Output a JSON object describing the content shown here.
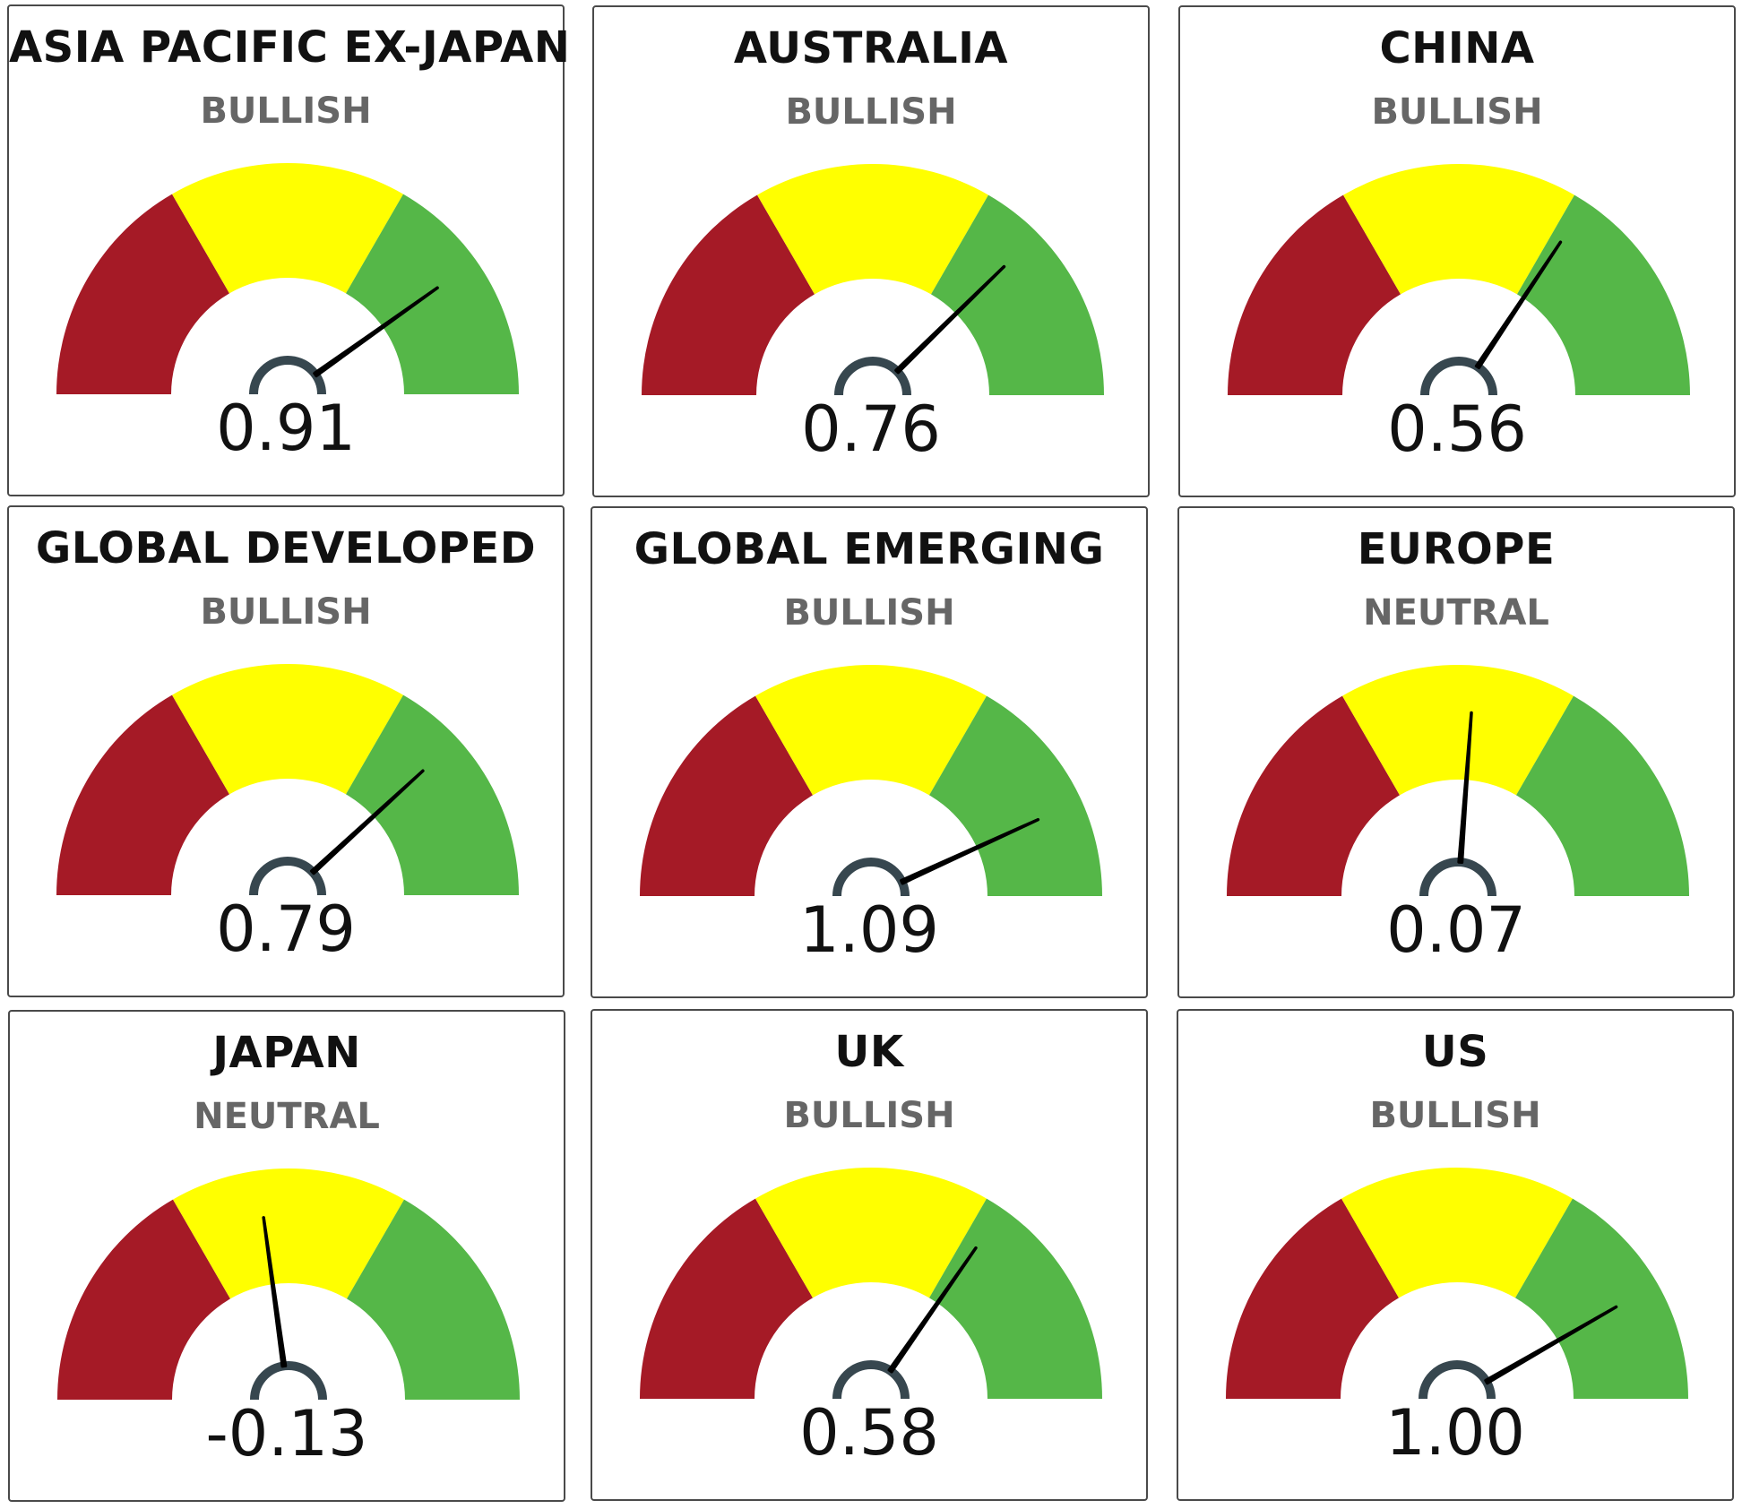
{
  "chart_data": [
    {
      "type": "gauge",
      "title": "ASIA PACIFIC EX-JAPAN",
      "status": "BULLISH",
      "value": 0.91,
      "value_label": "0.91",
      "range": [
        -1.5,
        1.5
      ],
      "bands": [
        {
          "from": -1.5,
          "to": -0.5,
          "color": "#a51a26"
        },
        {
          "from": -0.5,
          "to": 0.5,
          "color": "#ffff00"
        },
        {
          "from": 0.5,
          "to": 1.5,
          "color": "#55b748"
        }
      ]
    },
    {
      "type": "gauge",
      "title": "AUSTRALIA",
      "status": "BULLISH",
      "value": 0.76,
      "value_label": "0.76",
      "range": [
        -1.5,
        1.5
      ],
      "bands": [
        {
          "from": -1.5,
          "to": -0.5,
          "color": "#a51a26"
        },
        {
          "from": -0.5,
          "to": 0.5,
          "color": "#ffff00"
        },
        {
          "from": 0.5,
          "to": 1.5,
          "color": "#55b748"
        }
      ]
    },
    {
      "type": "gauge",
      "title": "CHINA",
      "status": "BULLISH",
      "value": 0.56,
      "value_label": "0.56",
      "range": [
        -1.5,
        1.5
      ],
      "bands": [
        {
          "from": -1.5,
          "to": -0.5,
          "color": "#a51a26"
        },
        {
          "from": -0.5,
          "to": 0.5,
          "color": "#ffff00"
        },
        {
          "from": 0.5,
          "to": 1.5,
          "color": "#55b748"
        }
      ]
    },
    {
      "type": "gauge",
      "title": "GLOBAL DEVELOPED",
      "status": "BULLISH",
      "value": 0.79,
      "value_label": "0.79",
      "range": [
        -1.5,
        1.5
      ],
      "bands": [
        {
          "from": -1.5,
          "to": -0.5,
          "color": "#a51a26"
        },
        {
          "from": -0.5,
          "to": 0.5,
          "color": "#ffff00"
        },
        {
          "from": 0.5,
          "to": 1.5,
          "color": "#55b748"
        }
      ]
    },
    {
      "type": "gauge",
      "title": "GLOBAL EMERGING",
      "status": "BULLISH",
      "value": 1.09,
      "value_label": "1.09",
      "range": [
        -1.5,
        1.5
      ],
      "bands": [
        {
          "from": -1.5,
          "to": -0.5,
          "color": "#a51a26"
        },
        {
          "from": -0.5,
          "to": 0.5,
          "color": "#ffff00"
        },
        {
          "from": 0.5,
          "to": 1.5,
          "color": "#55b748"
        }
      ]
    },
    {
      "type": "gauge",
      "title": "EUROPE",
      "status": "NEUTRAL",
      "value": 0.07,
      "value_label": "0.07",
      "range": [
        -1.5,
        1.5
      ],
      "bands": [
        {
          "from": -1.5,
          "to": -0.5,
          "color": "#a51a26"
        },
        {
          "from": -0.5,
          "to": 0.5,
          "color": "#ffff00"
        },
        {
          "from": 0.5,
          "to": 1.5,
          "color": "#55b748"
        }
      ]
    },
    {
      "type": "gauge",
      "title": "JAPAN",
      "status": "NEUTRAL",
      "value": -0.13,
      "value_label": "-0.13",
      "range": [
        -1.5,
        1.5
      ],
      "bands": [
        {
          "from": -1.5,
          "to": -0.5,
          "color": "#a51a26"
        },
        {
          "from": -0.5,
          "to": 0.5,
          "color": "#ffff00"
        },
        {
          "from": 0.5,
          "to": 1.5,
          "color": "#55b748"
        }
      ]
    },
    {
      "type": "gauge",
      "title": "UK",
      "status": "BULLISH",
      "value": 0.58,
      "value_label": "0.58",
      "range": [
        -1.5,
        1.5
      ],
      "bands": [
        {
          "from": -1.5,
          "to": -0.5,
          "color": "#a51a26"
        },
        {
          "from": -0.5,
          "to": 0.5,
          "color": "#ffff00"
        },
        {
          "from": 0.5,
          "to": 1.5,
          "color": "#55b748"
        }
      ]
    },
    {
      "type": "gauge",
      "title": "US",
      "status": "BULLISH",
      "value": 1.0,
      "value_label": "1.00",
      "range": [
        -1.5,
        1.5
      ],
      "bands": [
        {
          "from": -1.5,
          "to": -0.5,
          "color": "#a51a26"
        },
        {
          "from": -0.5,
          "to": 0.5,
          "color": "#ffff00"
        },
        {
          "from": 0.5,
          "to": 1.5,
          "color": "#55b748"
        }
      ]
    }
  ],
  "colors": {
    "needle": "#000000",
    "hub": "#37474f"
  }
}
